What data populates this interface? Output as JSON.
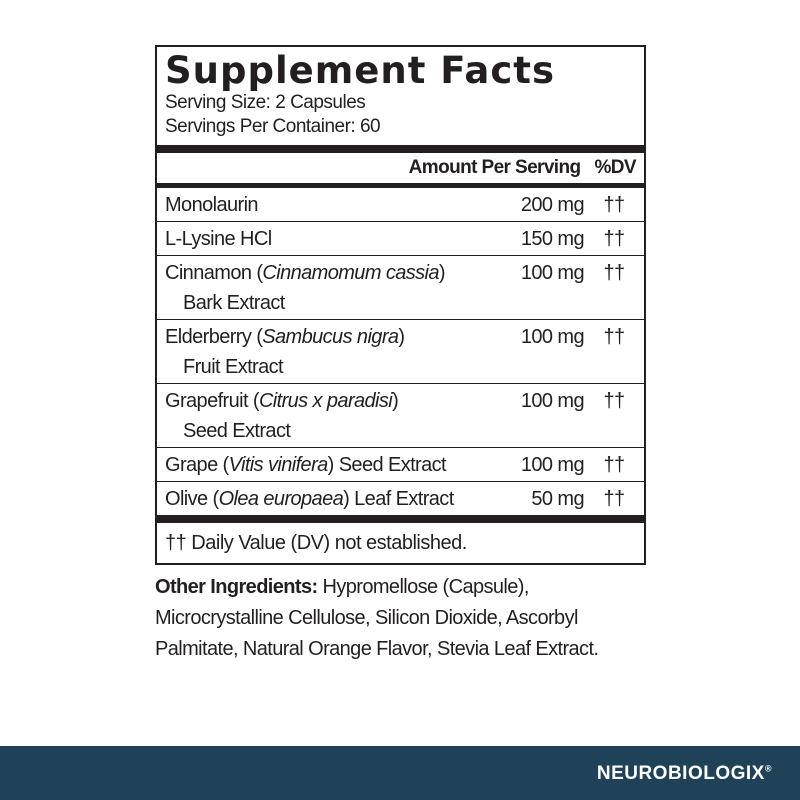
{
  "title": "Supplement Facts",
  "serving_size": "Serving Size: 2 Capsules",
  "servings_per_container": "Servings Per Container: 60",
  "header": {
    "amount": "Amount Per Serving",
    "dv": "%DV"
  },
  "rows": [
    {
      "name": "Monolaurin",
      "latin": "",
      "suffix": "",
      "line2": "",
      "amount": "200 mg",
      "dv": "††"
    },
    {
      "name": "L-Lysine HCl",
      "latin": "",
      "suffix": "",
      "line2": "",
      "amount": "150 mg",
      "dv": "††"
    },
    {
      "name": "Cinnamon (",
      "latin": "Cinnamomum cassia",
      "suffix": ")",
      "line2": "Bark Extract",
      "amount": "100 mg",
      "dv": "††"
    },
    {
      "name": "Elderberry (",
      "latin": "Sambucus nigra",
      "suffix": ")",
      "line2": "Fruit Extract",
      "amount": "100 mg",
      "dv": "††"
    },
    {
      "name": "Grapefruit (",
      "latin": "Citrus x paradisi",
      "suffix": ")",
      "line2": "Seed Extract",
      "amount": "100 mg",
      "dv": "††"
    },
    {
      "name": "Grape (",
      "latin": "Vitis vinifera",
      "suffix": ") Seed Extract",
      "line2": "",
      "amount": "100 mg",
      "dv": "††"
    },
    {
      "name": "Olive (",
      "latin": "Olea europaea",
      "suffix": ") Leaf Extract",
      "line2": "",
      "amount": "50 mg",
      "dv": "††"
    }
  ],
  "footnote": "†† Daily Value (DV) not established.",
  "other": {
    "label": "Other Ingredients:",
    "text": " Hypromellose (Capsule), Microcrystalline Cellulose, Silicon Dioxide, Ascorbyl Palmitate, Natural Orange Flavor, Stevia Leaf Extract."
  },
  "brand": {
    "name": "NEUROBIOLOGIX",
    "mark": "®",
    "bar_color": "#1f4259"
  }
}
